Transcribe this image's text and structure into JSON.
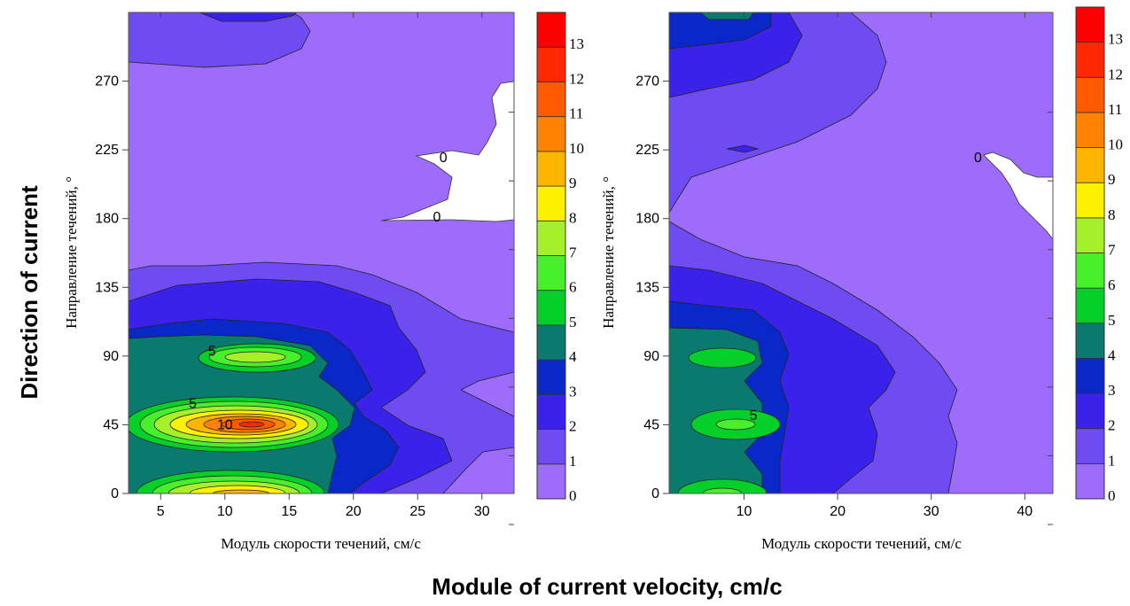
{
  "figure": {
    "ylabel_en": "Direction of current",
    "xlabel_en": "Module of current velocity, cm/c"
  },
  "chart_data": [
    {
      "type": "heatmap",
      "xlabel": "Модуль скорости течений, см/с",
      "ylabel": "Направление течений, °",
      "xlim": [
        2.5,
        32.5
      ],
      "ylim": [
        0,
        315
      ],
      "x_ticks": [
        5,
        10,
        15,
        20,
        25,
        30
      ],
      "y_ticks": [
        0,
        45,
        90,
        135,
        180,
        225,
        270
      ],
      "colorbar": {
        "levels": [
          0,
          1,
          2,
          3,
          4,
          5,
          6,
          7,
          8,
          9,
          10,
          11,
          12,
          13
        ],
        "colors": [
          "#9d6cfa",
          "#6f4cf2",
          "#3b22ea",
          "#0a28c8",
          "#0a7a6e",
          "#05d02a",
          "#47f02a",
          "#a6f02a",
          "#fff200",
          "#ffb400",
          "#ff8200",
          "#ff5a00",
          "#ff2800",
          "#ff0000"
        ]
      },
      "peaks": [
        {
          "x": 12.5,
          "y": 0,
          "value": 9
        },
        {
          "x": 12.5,
          "y": 45,
          "value": 12.5
        },
        {
          "x": 12.5,
          "y": 90,
          "value": 7
        },
        {
          "x": 12.5,
          "y": 315,
          "value": 2.5
        }
      ],
      "contour_labels": [
        {
          "text": "5",
          "x": 9,
          "y": 93
        },
        {
          "text": "5",
          "x": 7.5,
          "y": 59
        },
        {
          "text": "10",
          "x": 10,
          "y": 45
        },
        {
          "text": "0",
          "x": 27,
          "y": 220
        },
        {
          "text": "0",
          "x": 26.5,
          "y": 181
        }
      ]
    },
    {
      "type": "heatmap",
      "xlabel": "Модуль скорости течений, см/с",
      "ylabel": "Направление течений, °",
      "xlim": [
        2,
        43
      ],
      "ylim": [
        0,
        315
      ],
      "x_ticks": [
        10,
        20,
        30,
        40
      ],
      "y_ticks": [
        0,
        45,
        90,
        135,
        180,
        225,
        270
      ],
      "colorbar": {
        "levels": [
          0,
          1,
          2,
          3,
          4,
          5,
          6,
          7,
          8,
          9,
          10,
          11,
          12,
          13
        ],
        "colors": [
          "#9d6cfa",
          "#6f4cf2",
          "#3b22ea",
          "#0a28c8",
          "#0a7a6e",
          "#05d02a",
          "#47f02a",
          "#a6f02a",
          "#fff200",
          "#ffb400",
          "#ff8200",
          "#ff5a00",
          "#ff2800",
          "#ff0000"
        ]
      },
      "peaks": [
        {
          "x": 8,
          "y": 45,
          "value": 6
        },
        {
          "x": 8,
          "y": 90,
          "value": 6
        },
        {
          "x": 8,
          "y": 0,
          "value": 6
        },
        {
          "x": 5,
          "y": 315,
          "value": 5
        }
      ],
      "contour_labels": [
        {
          "text": "5",
          "x": 11,
          "y": 51
        },
        {
          "text": "0",
          "x": 35,
          "y": 220
        }
      ]
    }
  ]
}
